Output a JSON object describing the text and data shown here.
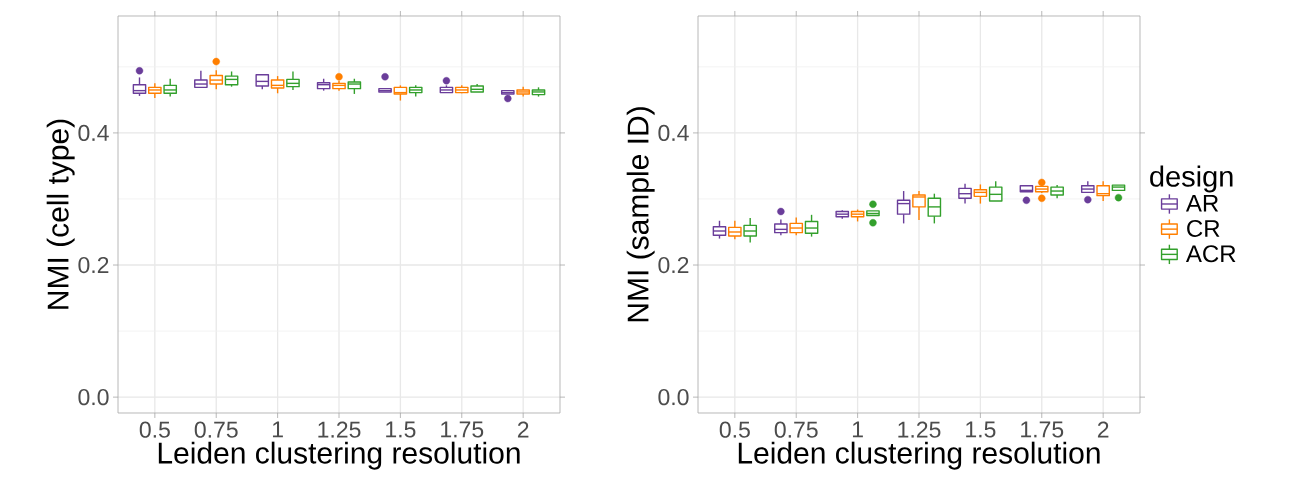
{
  "chart_data": [
    {
      "type": "box",
      "xlabel": "Leiden clustering resolution",
      "ylabel": "NMI (cell type)",
      "categories": [
        "0.5",
        "0.75",
        "1",
        "1.25",
        "1.5",
        "1.75",
        "2"
      ],
      "ylim": [
        -0.024,
        0.577
      ],
      "yticks": [
        {
          "value": 0,
          "label": "0.0"
        },
        {
          "value": 0.1,
          "label": null
        },
        {
          "value": 0.2,
          "label": "0.2"
        },
        {
          "value": 0.3,
          "label": null
        },
        {
          "value": 0.4,
          "label": "0.4"
        },
        {
          "value": 0.5,
          "label": null
        }
      ],
      "grid": true,
      "legend": false,
      "series": [
        {
          "color": "#6a3d9a",
          "boxes": [
            {
              "low": 0.456,
              "q1": 0.46,
              "median": 0.464,
              "q3": 0.473,
              "high": 0.484,
              "outliers": [
                0.494
              ]
            },
            {
              "low": 0.469,
              "q1": 0.469,
              "median": 0.474,
              "q3": 0.48,
              "high": 0.494
            },
            {
              "low": 0.466,
              "q1": 0.471,
              "median": 0.478,
              "q3": 0.488,
              "high": 0.488
            },
            {
              "low": 0.464,
              "q1": 0.467,
              "median": 0.473,
              "q3": 0.476,
              "high": 0.482
            },
            {
              "low": 0.462,
              "q1": 0.462,
              "median": 0.464,
              "q3": 0.467,
              "high": 0.467,
              "outliers": [
                0.485
              ]
            },
            {
              "low": 0.461,
              "q1": 0.461,
              "median": 0.465,
              "q3": 0.469,
              "high": 0.472,
              "outliers": [
                0.479
              ]
            },
            {
              "low": 0.459,
              "q1": 0.459,
              "median": 0.461,
              "q3": 0.464,
              "high": 0.464,
              "outliers": [
                0.452
              ]
            }
          ]
        },
        {
          "color": "#ff7f00",
          "boxes": [
            {
              "low": 0.453,
              "q1": 0.46,
              "median": 0.465,
              "q3": 0.469,
              "high": 0.475
            },
            {
              "low": 0.466,
              "q1": 0.474,
              "median": 0.48,
              "q3": 0.487,
              "high": 0.495,
              "outliers": [
                0.508
              ]
            },
            {
              "low": 0.46,
              "q1": 0.468,
              "median": 0.472,
              "q3": 0.48,
              "high": 0.486
            },
            {
              "low": 0.464,
              "q1": 0.467,
              "median": 0.472,
              "q3": 0.475,
              "high": 0.479,
              "outliers": [
                0.485
              ]
            },
            {
              "low": 0.449,
              "q1": 0.459,
              "median": 0.461,
              "q3": 0.469,
              "high": 0.472
            },
            {
              "low": 0.46,
              "q1": 0.461,
              "median": 0.465,
              "q3": 0.469,
              "high": 0.472
            },
            {
              "low": 0.455,
              "q1": 0.459,
              "median": 0.462,
              "q3": 0.465,
              "high": 0.47
            }
          ]
        },
        {
          "color": "#33a02c",
          "boxes": [
            {
              "low": 0.455,
              "q1": 0.46,
              "median": 0.465,
              "q3": 0.472,
              "high": 0.482
            },
            {
              "low": 0.47,
              "q1": 0.473,
              "median": 0.481,
              "q3": 0.486,
              "high": 0.493
            },
            {
              "low": 0.465,
              "q1": 0.47,
              "median": 0.475,
              "q3": 0.481,
              "high": 0.493
            },
            {
              "low": 0.459,
              "q1": 0.467,
              "median": 0.474,
              "q3": 0.477,
              "high": 0.482
            },
            {
              "low": 0.455,
              "q1": 0.461,
              "median": 0.465,
              "q3": 0.469,
              "high": 0.472
            },
            {
              "low": 0.462,
              "q1": 0.462,
              "median": 0.466,
              "q3": 0.471,
              "high": 0.474
            },
            {
              "low": 0.455,
              "q1": 0.458,
              "median": 0.462,
              "q3": 0.465,
              "high": 0.469
            }
          ]
        }
      ]
    },
    {
      "type": "box",
      "xlabel": "Leiden clustering resolution",
      "ylabel": "NMI (sample ID)",
      "categories": [
        "0.5",
        "0.75",
        "1",
        "1.25",
        "1.5",
        "1.75",
        "2"
      ],
      "ylim": [
        -0.024,
        0.577
      ],
      "yticks": [
        {
          "value": 0,
          "label": "0.0"
        },
        {
          "value": 0.1,
          "label": null
        },
        {
          "value": 0.2,
          "label": "0.2"
        },
        {
          "value": 0.3,
          "label": null
        },
        {
          "value": 0.4,
          "label": "0.4"
        },
        {
          "value": 0.5,
          "label": null
        }
      ],
      "grid": true,
      "legend": "right",
      "legend_title": "design",
      "series": [
        {
          "name": "AR",
          "color": "#6a3d9a",
          "boxes": [
            {
              "low": 0.24,
              "q1": 0.245,
              "median": 0.2515,
              "q3": 0.258,
              "high": 0.267
            },
            {
              "low": 0.245,
              "q1": 0.249,
              "median": 0.254,
              "q3": 0.262,
              "high": 0.269,
              "outliers": [
                0.281
              ]
            },
            {
              "low": 0.27,
              "q1": 0.273,
              "median": 0.277,
              "q3": 0.281,
              "high": 0.283
            },
            {
              "low": 0.263,
              "q1": 0.277,
              "median": 0.293,
              "q3": 0.298,
              "high": 0.312
            },
            {
              "low": 0.293,
              "q1": 0.301,
              "median": 0.308,
              "q3": 0.316,
              "high": 0.323
            },
            {
              "low": 0.311,
              "q1": 0.311,
              "median": 0.313,
              "q3": 0.32,
              "high": 0.32,
              "outliers": [
                0.298
              ]
            },
            {
              "low": 0.309,
              "q1": 0.31,
              "median": 0.315,
              "q3": 0.32,
              "high": 0.327,
              "outliers": [
                0.299
              ]
            }
          ]
        },
        {
          "name": "CR",
          "color": "#ff7f00",
          "boxes": [
            {
              "low": 0.239,
              "q1": 0.244,
              "median": 0.25,
              "q3": 0.257,
              "high": 0.267
            },
            {
              "low": 0.245,
              "q1": 0.249,
              "median": 0.256,
              "q3": 0.263,
              "high": 0.272
            },
            {
              "low": 0.266,
              "q1": 0.273,
              "median": 0.277,
              "q3": 0.281,
              "high": 0.284
            },
            {
              "low": 0.268,
              "q1": 0.288,
              "median": 0.303,
              "q3": 0.306,
              "high": 0.312
            },
            {
              "low": 0.293,
              "q1": 0.304,
              "median": 0.31,
              "q3": 0.314,
              "high": 0.322
            },
            {
              "low": 0.309,
              "q1": 0.311,
              "median": 0.315,
              "q3": 0.319,
              "high": 0.321,
              "outliers": [
                0.325,
                0.301
              ]
            },
            {
              "low": 0.297,
              "q1": 0.305,
              "median": 0.308,
              "q3": 0.32,
              "high": 0.327
            }
          ]
        },
        {
          "name": "ACR",
          "color": "#33a02c",
          "boxes": [
            {
              "low": 0.234,
              "q1": 0.244,
              "median": 0.2515,
              "q3": 0.26,
              "high": 0.271
            },
            {
              "low": 0.243,
              "q1": 0.248,
              "median": 0.256,
              "q3": 0.266,
              "high": 0.276
            },
            {
              "low": 0.275,
              "q1": 0.275,
              "median": 0.278,
              "q3": 0.282,
              "high": 0.282,
              "outliers": [
                0.292,
                0.264
              ]
            },
            {
              "low": 0.263,
              "q1": 0.274,
              "median": 0.288,
              "q3": 0.301,
              "high": 0.308
            },
            {
              "low": 0.297,
              "q1": 0.297,
              "median": 0.307,
              "q3": 0.318,
              "high": 0.327
            },
            {
              "low": 0.301,
              "q1": 0.306,
              "median": 0.312,
              "q3": 0.318,
              "high": 0.321
            },
            {
              "low": 0.313,
              "q1": 0.313,
              "median": 0.318,
              "q3": 0.321,
              "high": 0.321,
              "outliers": [
                0.302
              ]
            }
          ]
        }
      ]
    }
  ]
}
